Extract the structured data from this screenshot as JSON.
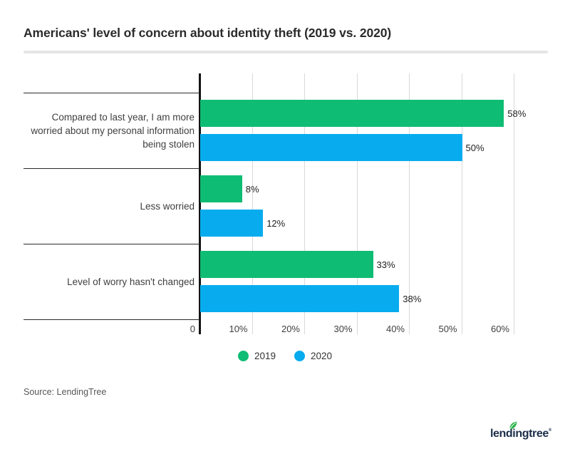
{
  "chart_data": {
    "type": "bar",
    "orientation": "horizontal",
    "title": "Americans' level of concern about identity theft (2019 vs. 2020)",
    "categories": [
      "Compared to last year, I am more\nworried about my personal information\nbeing stolen",
      "Less worried",
      "Level of worry hasn't changed"
    ],
    "series": [
      {
        "name": "2019",
        "color": "#0fbc73",
        "values": [
          58,
          8,
          33
        ]
      },
      {
        "name": "2020",
        "color": "#08acee",
        "values": [
          50,
          12,
          38
        ]
      }
    ],
    "value_suffix": "%",
    "x_ticks": [
      {
        "value": 0,
        "label": "0"
      },
      {
        "value": 10,
        "label": "10%"
      },
      {
        "value": 20,
        "label": "20%"
      },
      {
        "value": 30,
        "label": "30%"
      },
      {
        "value": 40,
        "label": "40%"
      },
      {
        "value": 50,
        "label": "50%"
      },
      {
        "value": 60,
        "label": "60%"
      }
    ],
    "xlim": [
      0,
      66
    ],
    "grid": true,
    "legend_position": "bottom"
  },
  "source": {
    "text": "Source: LendingTree"
  },
  "logo": {
    "text": "lendingtree",
    "registered": "®"
  },
  "colors": {
    "series_2019_green": "#0fbc73",
    "series_2020_blue": "#08acee",
    "axis_line": "#141414",
    "gridline": "#d9d9d9",
    "category_separator": "#2a2a2a",
    "title_text": "#2b2b2b",
    "category_label_text": "#3f3f3f",
    "value_label_text": "#1e1e1e",
    "source_text": "#56575b",
    "title_divider": "#e5e5e5",
    "logo_navy": "#1c2e4a",
    "leaf_green": "#2fb44b"
  }
}
